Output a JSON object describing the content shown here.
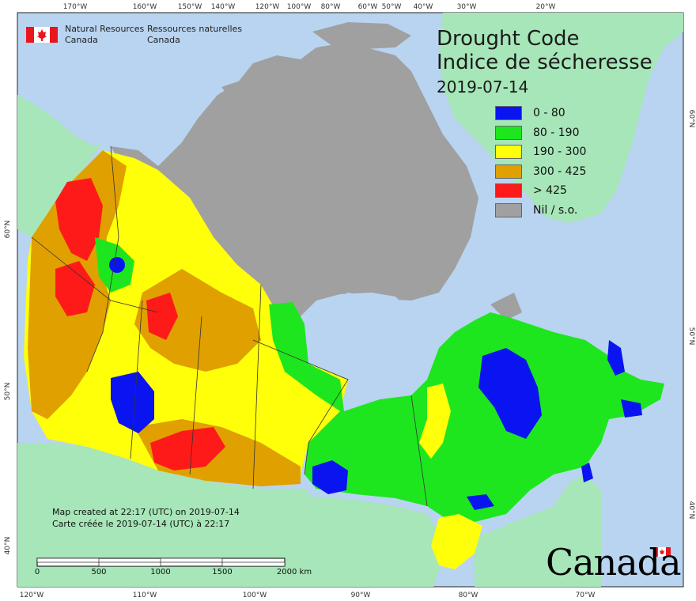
{
  "map": {
    "title_en": "Drought Code",
    "title_fr": "Indice de sécheresse",
    "date": "2019-07-14",
    "legend": [
      {
        "label": "0 - 80",
        "color": "#0a14f0"
      },
      {
        "label": "80 - 190",
        "color": "#1ee61e"
      },
      {
        "label": "190 - 300",
        "color": "#ffff0a"
      },
      {
        "label": "300 - 425",
        "color": "#e0a000"
      },
      {
        "label": "> 425",
        "color": "#ff1a1a"
      },
      {
        "label": "Nil / s.o.",
        "color": "#a0a0a0"
      }
    ],
    "org_en": [
      "Natural Resources",
      "Canada"
    ],
    "org_fr": [
      "Ressources naturelles",
      "Canada"
    ],
    "credit_en": "Map created at 22:17 (UTC) on 2019-07-14",
    "credit_fr": "Carte créée le 2019-07-14 (UTC) à 22:17",
    "scale_labels": [
      "0",
      "500",
      "1000",
      "1500",
      "2000 km"
    ],
    "top_ticks": [
      "170°W",
      "160°W",
      "150°W",
      "140°W",
      "120°W",
      "100°W",
      "80°W",
      "60°W",
      "50°W",
      "40°W",
      "30°W",
      "20°W"
    ],
    "bottom_ticks": [
      "120°W",
      "110°W",
      "100°W",
      "90°W",
      "80°W",
      "70°W"
    ],
    "left_ticks": [
      "60°N",
      "50°N",
      "40°N"
    ],
    "right_ticks": [
      "60°N",
      "50°N",
      "40°N"
    ],
    "wordmark": "Canada",
    "colors": {
      "ocean": "#b8d4f0",
      "land_other": "#a6e6b8",
      "nodata": "#a0a0a0",
      "border": "#333333"
    }
  }
}
